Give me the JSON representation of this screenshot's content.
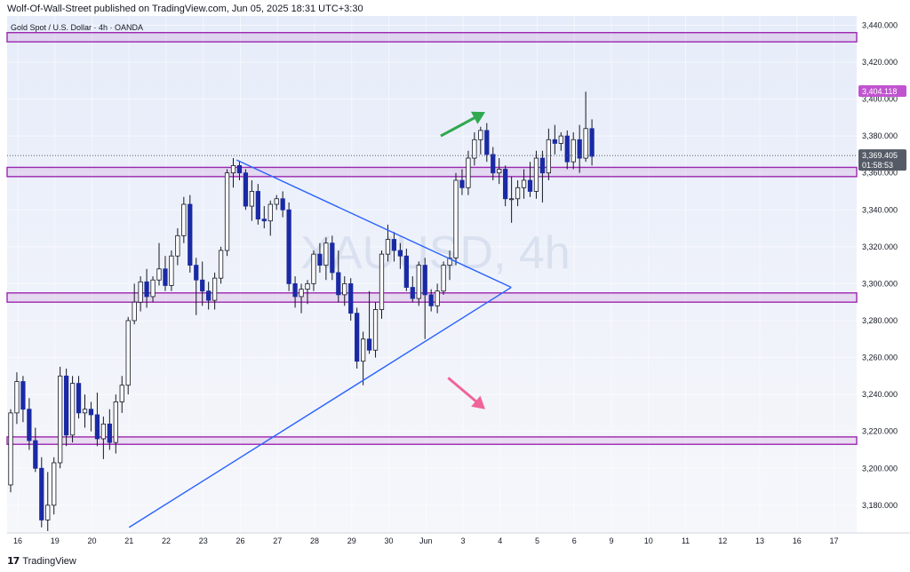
{
  "header": {
    "published_line": "Wolf-Of-Wall-Street published on TradingView.com, Jun 05, 2025 18:31 UTC+3:30"
  },
  "footer": {
    "brand": "TradingView"
  },
  "colors": {
    "background_top": "#e8edf8",
    "background_bottom": "#f4f6fb",
    "candle_up": "#ffffff",
    "candle_down": "#1a2aa5",
    "candle_wick": "#131722",
    "zone": "#9c27b0",
    "triangle": "#2962ff",
    "arrow_up": "#2fa84f",
    "arrow_down": "#f0649a",
    "price_badge": "#555b66",
    "top_badge": "#c054d0"
  },
  "chart_data": {
    "type": "candlestick",
    "title": "Gold Spot / U.S. Dollar · 4h · OANDA",
    "watermark": "XAUUSD, 4h",
    "ylim": [
      3165,
      3445
    ],
    "y_ticks": [
      "3,180.000",
      "3,200.000",
      "3,220.000",
      "3,240.000",
      "3,260.000",
      "3,280.000",
      "3,300.000",
      "3,320.000",
      "3,340.000",
      "3,360.000",
      "3,380.000",
      "3,400.000",
      "3,420.000",
      "3,440.000"
    ],
    "y_tick_values": [
      3180,
      3200,
      3220,
      3240,
      3260,
      3280,
      3300,
      3320,
      3340,
      3360,
      3380,
      3400,
      3420,
      3440
    ],
    "x_labels": [
      "16",
      "19",
      "20",
      "21",
      "22",
      "23",
      "26",
      "27",
      "28",
      "29",
      "30",
      "Jun",
      "3",
      "4",
      "5",
      "6",
      "9",
      "10",
      "11",
      "12",
      "13",
      "16",
      "17"
    ],
    "x_label_index": [
      0,
      1,
      2,
      3,
      4,
      5,
      6,
      7,
      8,
      9,
      10,
      11,
      12,
      13,
      14,
      15,
      16,
      17,
      18,
      19,
      20,
      21,
      22
    ],
    "candles_per_day": 6,
    "current_price": "3,369.405",
    "countdown": "01:58:53",
    "high_label": "3,404.118",
    "high_value": 3404.118,
    "last_value": 3369.405,
    "zones": [
      {
        "low": 3431,
        "high": 3436
      },
      {
        "low": 3358,
        "high": 3363
      },
      {
        "low": 3290,
        "high": 3295
      },
      {
        "low": 3213,
        "high": 3217
      }
    ],
    "triangle": {
      "upper": [
        [
          5.9,
          3367
        ],
        [
          13.3,
          3298
        ]
      ],
      "lower": [
        [
          3.0,
          3168
        ],
        [
          13.3,
          3298
        ]
      ]
    },
    "arrows": [
      {
        "direction": "up",
        "from": [
          11.4,
          3380
        ],
        "to": [
          12.6,
          3393
        ]
      },
      {
        "direction": "down",
        "from": [
          11.6,
          3249
        ],
        "to": [
          12.6,
          3232
        ]
      }
    ],
    "candles": [
      {
        "o": 3191,
        "h": 3232,
        "l": 3187,
        "c": 3230
      },
      {
        "o": 3230,
        "h": 3252,
        "l": 3224,
        "c": 3247
      },
      {
        "o": 3247,
        "h": 3250,
        "l": 3225,
        "c": 3232
      },
      {
        "o": 3232,
        "h": 3238,
        "l": 3210,
        "c": 3215
      },
      {
        "o": 3215,
        "h": 3222,
        "l": 3198,
        "c": 3200
      },
      {
        "o": 3200,
        "h": 3206,
        "l": 3168,
        "c": 3172
      },
      {
        "o": 3172,
        "h": 3198,
        "l": 3166,
        "c": 3180
      },
      {
        "o": 3180,
        "h": 3206,
        "l": 3175,
        "c": 3203
      },
      {
        "o": 3203,
        "h": 3255,
        "l": 3200,
        "c": 3250
      },
      {
        "o": 3250,
        "h": 3254,
        "l": 3212,
        "c": 3218
      },
      {
        "o": 3218,
        "h": 3250,
        "l": 3214,
        "c": 3246
      },
      {
        "o": 3246,
        "h": 3250,
        "l": 3227,
        "c": 3230
      },
      {
        "o": 3230,
        "h": 3240,
        "l": 3222,
        "c": 3232
      },
      {
        "o": 3232,
        "h": 3236,
        "l": 3220,
        "c": 3229
      },
      {
        "o": 3229,
        "h": 3241,
        "l": 3212,
        "c": 3216
      },
      {
        "o": 3216,
        "h": 3228,
        "l": 3205,
        "c": 3224
      },
      {
        "o": 3224,
        "h": 3232,
        "l": 3210,
        "c": 3214
      },
      {
        "o": 3214,
        "h": 3240,
        "l": 3208,
        "c": 3236
      },
      {
        "o": 3236,
        "h": 3250,
        "l": 3230,
        "c": 3245
      },
      {
        "o": 3245,
        "h": 3282,
        "l": 3240,
        "c": 3280
      },
      {
        "o": 3280,
        "h": 3300,
        "l": 3278,
        "c": 3290
      },
      {
        "o": 3290,
        "h": 3304,
        "l": 3285,
        "c": 3301
      },
      {
        "o": 3301,
        "h": 3308,
        "l": 3287,
        "c": 3293
      },
      {
        "o": 3293,
        "h": 3304,
        "l": 3290,
        "c": 3302
      },
      {
        "o": 3302,
        "h": 3322,
        "l": 3299,
        "c": 3308
      },
      {
        "o": 3308,
        "h": 3315,
        "l": 3296,
        "c": 3299
      },
      {
        "o": 3299,
        "h": 3318,
        "l": 3296,
        "c": 3315
      },
      {
        "o": 3315,
        "h": 3330,
        "l": 3310,
        "c": 3326
      },
      {
        "o": 3326,
        "h": 3347,
        "l": 3322,
        "c": 3343
      },
      {
        "o": 3343,
        "h": 3348,
        "l": 3306,
        "c": 3310
      },
      {
        "o": 3310,
        "h": 3314,
        "l": 3283,
        "c": 3302
      },
      {
        "o": 3302,
        "h": 3312,
        "l": 3288,
        "c": 3296
      },
      {
        "o": 3296,
        "h": 3301,
        "l": 3286,
        "c": 3291
      },
      {
        "o": 3291,
        "h": 3306,
        "l": 3286,
        "c": 3303
      },
      {
        "o": 3303,
        "h": 3320,
        "l": 3300,
        "c": 3318
      },
      {
        "o": 3318,
        "h": 3362,
        "l": 3315,
        "c": 3360
      },
      {
        "o": 3360,
        "h": 3368,
        "l": 3352,
        "c": 3364
      },
      {
        "o": 3364,
        "h": 3366,
        "l": 3356,
        "c": 3360
      },
      {
        "o": 3360,
        "h": 3362,
        "l": 3340,
        "c": 3342
      },
      {
        "o": 3342,
        "h": 3356,
        "l": 3334,
        "c": 3350
      },
      {
        "o": 3350,
        "h": 3354,
        "l": 3332,
        "c": 3335
      },
      {
        "o": 3335,
        "h": 3342,
        "l": 3330,
        "c": 3334
      },
      {
        "o": 3334,
        "h": 3345,
        "l": 3326,
        "c": 3343
      },
      {
        "o": 3343,
        "h": 3348,
        "l": 3340,
        "c": 3346
      },
      {
        "o": 3346,
        "h": 3350,
        "l": 3336,
        "c": 3340
      },
      {
        "o": 3340,
        "h": 3344,
        "l": 3296,
        "c": 3300
      },
      {
        "o": 3300,
        "h": 3304,
        "l": 3287,
        "c": 3293
      },
      {
        "o": 3293,
        "h": 3300,
        "l": 3284,
        "c": 3297
      },
      {
        "o": 3297,
        "h": 3302,
        "l": 3289,
        "c": 3300
      },
      {
        "o": 3300,
        "h": 3318,
        "l": 3296,
        "c": 3316
      },
      {
        "o": 3316,
        "h": 3322,
        "l": 3306,
        "c": 3310
      },
      {
        "o": 3310,
        "h": 3325,
        "l": 3302,
        "c": 3322
      },
      {
        "o": 3322,
        "h": 3326,
        "l": 3302,
        "c": 3306
      },
      {
        "o": 3306,
        "h": 3318,
        "l": 3290,
        "c": 3294
      },
      {
        "o": 3294,
        "h": 3304,
        "l": 3288,
        "c": 3300
      },
      {
        "o": 3300,
        "h": 3303,
        "l": 3280,
        "c": 3284
      },
      {
        "o": 3284,
        "h": 3287,
        "l": 3254,
        "c": 3258
      },
      {
        "o": 3258,
        "h": 3274,
        "l": 3245,
        "c": 3270
      },
      {
        "o": 3270,
        "h": 3296,
        "l": 3262,
        "c": 3264
      },
      {
        "o": 3264,
        "h": 3290,
        "l": 3260,
        "c": 3286
      },
      {
        "o": 3286,
        "h": 3318,
        "l": 3281,
        "c": 3316
      },
      {
        "o": 3316,
        "h": 3332,
        "l": 3312,
        "c": 3324
      },
      {
        "o": 3324,
        "h": 3328,
        "l": 3312,
        "c": 3318
      },
      {
        "o": 3318,
        "h": 3322,
        "l": 3308,
        "c": 3315
      },
      {
        "o": 3315,
        "h": 3319,
        "l": 3296,
        "c": 3298
      },
      {
        "o": 3298,
        "h": 3304,
        "l": 3290,
        "c": 3292
      },
      {
        "o": 3292,
        "h": 3312,
        "l": 3288,
        "c": 3310
      },
      {
        "o": 3310,
        "h": 3314,
        "l": 3270,
        "c": 3294
      },
      {
        "o": 3294,
        "h": 3297,
        "l": 3285,
        "c": 3288
      },
      {
        "o": 3288,
        "h": 3300,
        "l": 3284,
        "c": 3296
      },
      {
        "o": 3296,
        "h": 3312,
        "l": 3294,
        "c": 3310
      },
      {
        "o": 3310,
        "h": 3318,
        "l": 3302,
        "c": 3314
      },
      {
        "o": 3314,
        "h": 3360,
        "l": 3310,
        "c": 3356
      },
      {
        "o": 3356,
        "h": 3362,
        "l": 3348,
        "c": 3352
      },
      {
        "o": 3352,
        "h": 3372,
        "l": 3348,
        "c": 3368
      },
      {
        "o": 3368,
        "h": 3382,
        "l": 3364,
        "c": 3378
      },
      {
        "o": 3378,
        "h": 3385,
        "l": 3370,
        "c": 3383
      },
      {
        "o": 3383,
        "h": 3387,
        "l": 3366,
        "c": 3370
      },
      {
        "o": 3370,
        "h": 3374,
        "l": 3356,
        "c": 3360
      },
      {
        "o": 3360,
        "h": 3368,
        "l": 3354,
        "c": 3362
      },
      {
        "o": 3362,
        "h": 3364,
        "l": 3342,
        "c": 3346
      },
      {
        "o": 3346,
        "h": 3358,
        "l": 3333,
        "c": 3346
      },
      {
        "o": 3346,
        "h": 3356,
        "l": 3342,
        "c": 3352
      },
      {
        "o": 3352,
        "h": 3362,
        "l": 3346,
        "c": 3356
      },
      {
        "o": 3356,
        "h": 3366,
        "l": 3347,
        "c": 3350
      },
      {
        "o": 3350,
        "h": 3372,
        "l": 3346,
        "c": 3368
      },
      {
        "o": 3368,
        "h": 3372,
        "l": 3344,
        "c": 3360
      },
      {
        "o": 3360,
        "h": 3384,
        "l": 3356,
        "c": 3378
      },
      {
        "o": 3378,
        "h": 3386,
        "l": 3370,
        "c": 3376
      },
      {
        "o": 3376,
        "h": 3382,
        "l": 3372,
        "c": 3380
      },
      {
        "o": 3380,
        "h": 3383,
        "l": 3362,
        "c": 3366
      },
      {
        "o": 3366,
        "h": 3382,
        "l": 3362,
        "c": 3378
      },
      {
        "o": 3378,
        "h": 3386,
        "l": 3360,
        "c": 3368
      },
      {
        "o": 3368,
        "h": 3404,
        "l": 3366,
        "c": 3384
      },
      {
        "o": 3384,
        "h": 3389,
        "l": 3364,
        "c": 3369
      }
    ]
  }
}
